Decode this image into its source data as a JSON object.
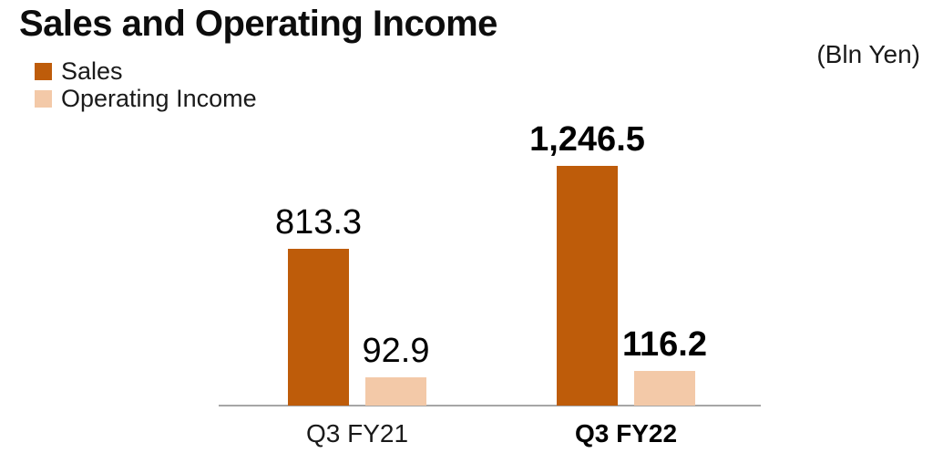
{
  "title": "Sales and Operating Income",
  "unit_note": "(Bln Yen)",
  "colors": {
    "sales": "#BE5C0A",
    "operating_income": "#F3C9A8",
    "axis_line": "#A6A6A6",
    "text": "#000000"
  },
  "legend": [
    {
      "label": "Sales",
      "color": "#BE5C0A"
    },
    {
      "label": "Operating Income",
      "color": "#F3C9A8"
    }
  ],
  "chart_data": {
    "type": "bar",
    "title": "Sales and Operating Income",
    "unit": "Bln Yen",
    "categories": [
      "Q3 FY21",
      "Q3 FY22"
    ],
    "series": [
      {
        "name": "Sales",
        "color": "#BE5C0A",
        "values": [
          813.3,
          1246.5
        ],
        "labels": [
          "813.3",
          "1,246.5"
        ],
        "axis_max": 1250
      },
      {
        "name": "Operating Income",
        "color": "#F3C9A8",
        "values": [
          92.9,
          116.2
        ],
        "labels": [
          "92.9",
          "116.2"
        ],
        "axis_max": 800
      }
    ],
    "emphasized_category_index": 1,
    "layout": {
      "legend_position": "top-left",
      "grid": false,
      "value_labels": "above-bars",
      "baseline": "zero",
      "ylim_primary": [
        0,
        1250
      ],
      "ylim_secondary": [
        0,
        800
      ]
    }
  }
}
